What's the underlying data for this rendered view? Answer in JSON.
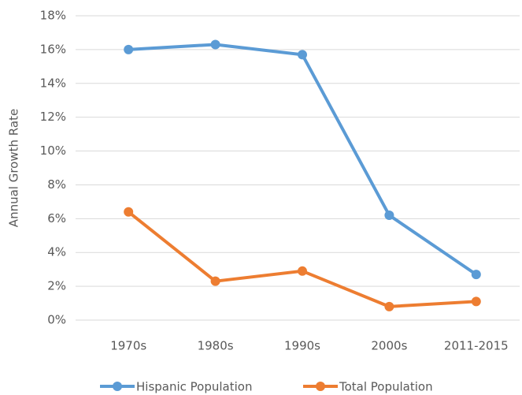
{
  "chart_data": {
    "type": "line",
    "y_label": "Annual Growth Rate",
    "categories": [
      "1970s",
      "1980s",
      "1990s",
      "2000s",
      "2011-2015"
    ],
    "series": [
      {
        "name": "Hispanic Population",
        "color": "#5b9bd5",
        "values": [
          16.0,
          16.3,
          15.7,
          6.2,
          2.7
        ]
      },
      {
        "name": "Total Population",
        "color": "#ed7d31",
        "values": [
          6.4,
          2.3,
          2.9,
          0.8,
          1.1
        ]
      }
    ],
    "ylim": [
      0,
      18
    ],
    "yticks": [
      {
        "value": 0,
        "label": "0%"
      },
      {
        "value": 2,
        "label": "2%"
      },
      {
        "value": 4,
        "label": "4%"
      },
      {
        "value": 6,
        "label": "6%"
      },
      {
        "value": 8,
        "label": "8%"
      },
      {
        "value": 10,
        "label": "10%"
      },
      {
        "value": 12,
        "label": "12%"
      },
      {
        "value": 14,
        "label": "14%"
      },
      {
        "value": 16,
        "label": "16%"
      },
      {
        "value": 18,
        "label": "18%"
      }
    ],
    "grid": true,
    "legend": "bottom"
  }
}
